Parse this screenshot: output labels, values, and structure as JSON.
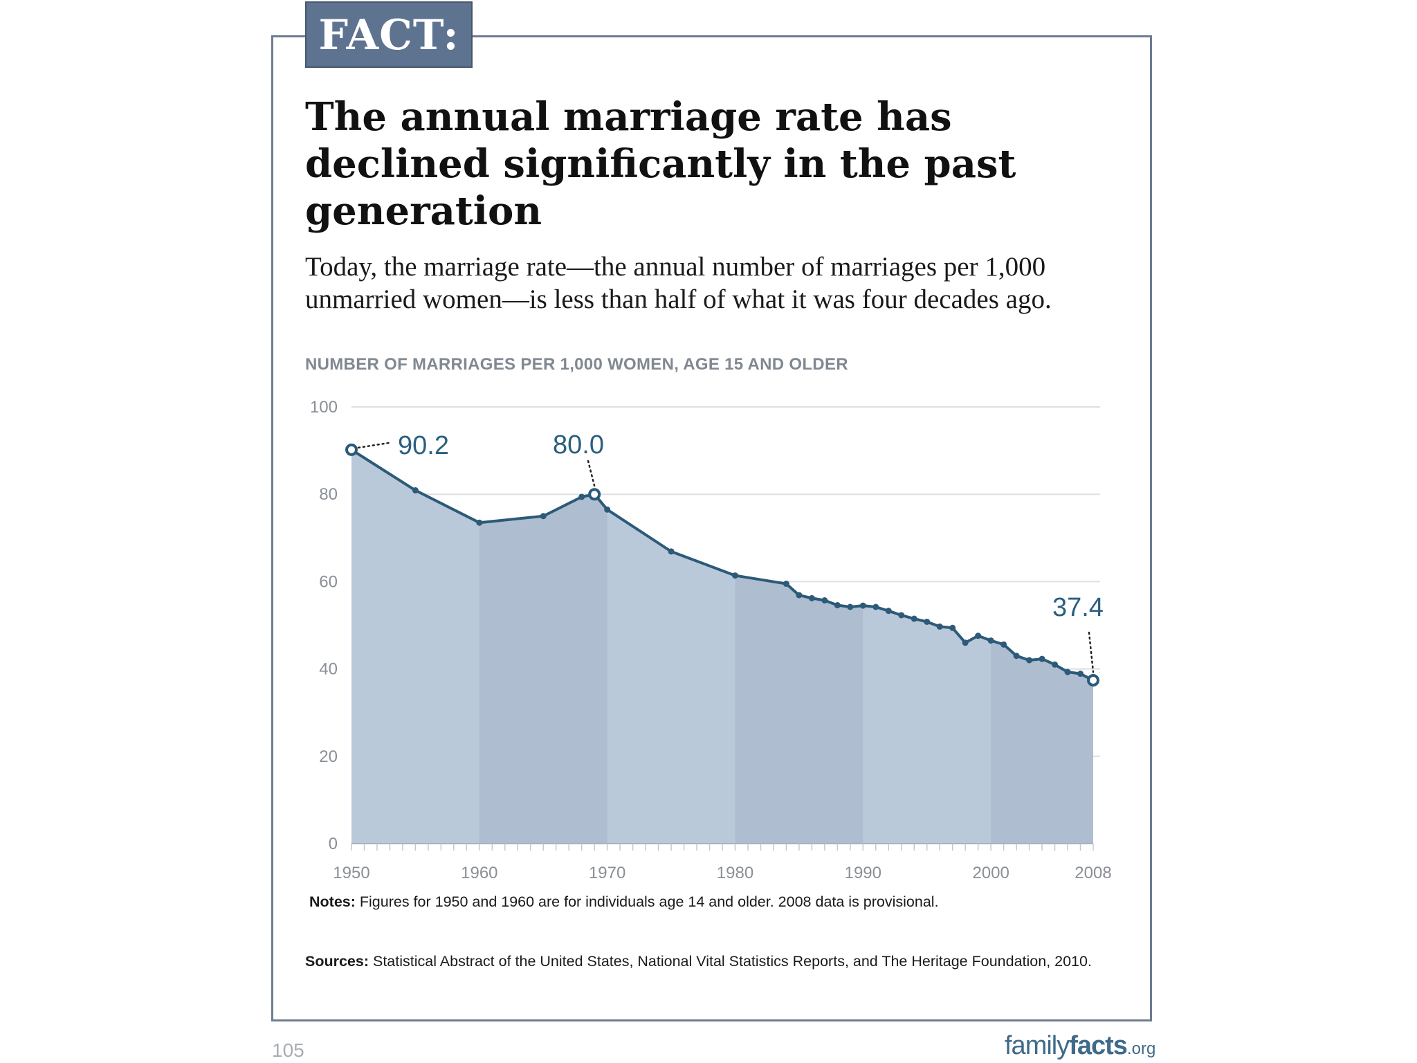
{
  "badge": "FACT:",
  "title": "The annual marriage rate has declined significantly in the past generation",
  "subtitle": "Today, the marriage rate—the annual number of marriages per 1,000 unmarried women—is less than half of what it was four decades ago.",
  "notes": {
    "label": "Notes:",
    "text": " Figures for 1950 and 1960 are for individuals age 14 and older. 2008 data is provisional."
  },
  "sources": {
    "label": "Sources:",
    "text": " Statistical Abstract of the United States, National Vital Statistics Reports, and The Heritage Foundation, 2010."
  },
  "page_number": "105",
  "brand": {
    "part1": "family",
    "part2": "facts",
    "part3": ".org"
  },
  "colors": {
    "line": "#2c5a78",
    "area": "#b9c9da",
    "area_alt": "#aebdd0",
    "grid": "#dcdfe3",
    "badge": "#5e7390"
  },
  "chart_data": {
    "type": "area",
    "title": "NUMBER OF MARRIAGES PER 1,000 WOMEN, AGE 15 AND OLDER",
    "xlabel": "",
    "ylabel": "",
    "xlim": [
      1950,
      2008
    ],
    "ylim": [
      0,
      100
    ],
    "y_ticks": [
      0,
      20,
      40,
      60,
      80,
      100
    ],
    "x_ticks": [
      1950,
      1960,
      1970,
      1980,
      1990,
      2000,
      2008
    ],
    "grid": true,
    "legend": "none",
    "series": [
      {
        "x": [
          1950,
          1955,
          1960,
          1965,
          1968,
          1969,
          1970,
          1975,
          1980,
          1984,
          1985,
          1986,
          1987,
          1988,
          1989,
          1990,
          1991,
          1992,
          1993,
          1994,
          1995,
          1996,
          1997,
          1998,
          1999,
          2000,
          2001,
          2002,
          2003,
          2004,
          2005,
          2006,
          2007,
          2008
        ],
        "y": [
          90.2,
          80.9,
          73.5,
          75.0,
          79.4,
          80.0,
          76.5,
          66.9,
          61.4,
          59.5,
          56.9,
          56.2,
          55.7,
          54.6,
          54.2,
          54.5,
          54.2,
          53.3,
          52.3,
          51.5,
          50.8,
          49.7,
          49.4,
          46.0,
          47.6,
          46.5,
          45.6,
          43.0,
          42.0,
          42.3,
          41.0,
          39.3,
          38.9,
          37.4
        ]
      }
    ],
    "annotations": [
      {
        "x": 1950,
        "y": 90.2,
        "label": "90.2"
      },
      {
        "x": 1969,
        "y": 80.0,
        "label": "80.0"
      },
      {
        "x": 2008,
        "y": 37.4,
        "label": "37.4"
      }
    ]
  }
}
